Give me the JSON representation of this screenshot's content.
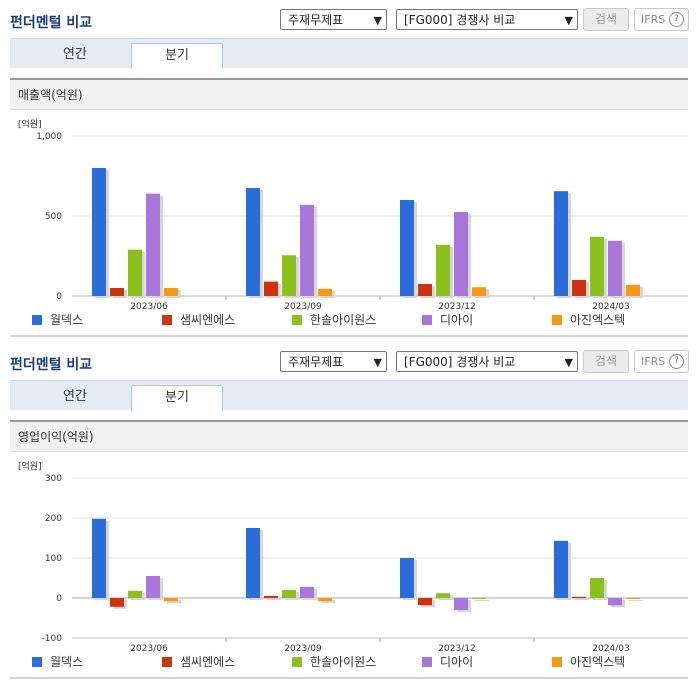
{
  "panels": [
    {
      "header": {
        "title": "펀더멘털 비교",
        "select_statement": "주재무제표",
        "select_group": "[FG000] 경쟁사 비교",
        "search_label": "검색",
        "ifrs_label": "IFRS",
        "help_label": "?"
      },
      "tabs": [
        {
          "label": "연간",
          "active": false
        },
        {
          "label": "분기",
          "active": true
        }
      ],
      "section_title": "매출액(억원)"
    },
    {
      "header": {
        "title": "펀더멘털 비교",
        "select_statement": "주재무제표",
        "select_group": "[FG000] 경쟁사 비교",
        "search_label": "검색",
        "ifrs_label": "IFRS",
        "help_label": "?"
      },
      "tabs": [
        {
          "label": "연간",
          "active": false
        },
        {
          "label": "분기",
          "active": true
        }
      ],
      "section_title": "영업이익(억원)"
    }
  ],
  "chart_data": [
    {
      "type": "bar",
      "unit_label": "[억원]",
      "categories": [
        "2023/06",
        "2023/09",
        "2023/12",
        "2024/03"
      ],
      "ylim": [
        0,
        1000
      ],
      "yticks": [
        0,
        500,
        1000
      ],
      "ytick_labels": [
        "0",
        "500",
        "1,000"
      ],
      "grid": true,
      "legend_position": "bottom",
      "series": [
        {
          "name": "월덱스",
          "color": "#2a6cd8",
          "values": [
            800,
            675,
            600,
            655
          ]
        },
        {
          "name": "샘씨엔에스",
          "color": "#cc3311",
          "values": [
            50,
            90,
            75,
            100
          ]
        },
        {
          "name": "한솔아이원스",
          "color": "#8cc01e",
          "values": [
            290,
            255,
            320,
            370
          ]
        },
        {
          "name": "디아이",
          "color": "#a877d9",
          "values": [
            640,
            570,
            525,
            345
          ]
        },
        {
          "name": "아진엑스텍",
          "color": "#f59a14",
          "values": [
            50,
            45,
            55,
            70
          ]
        }
      ]
    },
    {
      "type": "bar",
      "unit_label": "[억원]",
      "categories": [
        "2023/06",
        "2023/09",
        "2023/12",
        "2024/03"
      ],
      "ylim": [
        -100,
        300
      ],
      "yticks": [
        -100,
        0,
        100,
        200,
        300
      ],
      "ytick_labels": [
        "-100",
        "0",
        "100",
        "200",
        "300"
      ],
      "grid": true,
      "legend_position": "bottom",
      "series": [
        {
          "name": "월덱스",
          "color": "#2a6cd8",
          "values": [
            198,
            175,
            100,
            143
          ]
        },
        {
          "name": "샘씨엔에스",
          "color": "#cc3311",
          "values": [
            -22,
            5,
            -18,
            3
          ]
        },
        {
          "name": "한솔아이원스",
          "color": "#8cc01e",
          "values": [
            18,
            20,
            12,
            50
          ]
        },
        {
          "name": "디아이",
          "color": "#a877d9",
          "values": [
            55,
            28,
            -30,
            -18
          ]
        },
        {
          "name": "아진엑스텍",
          "color": "#f59a14",
          "values": [
            -8,
            -8,
            -2,
            0
          ]
        }
      ]
    }
  ]
}
